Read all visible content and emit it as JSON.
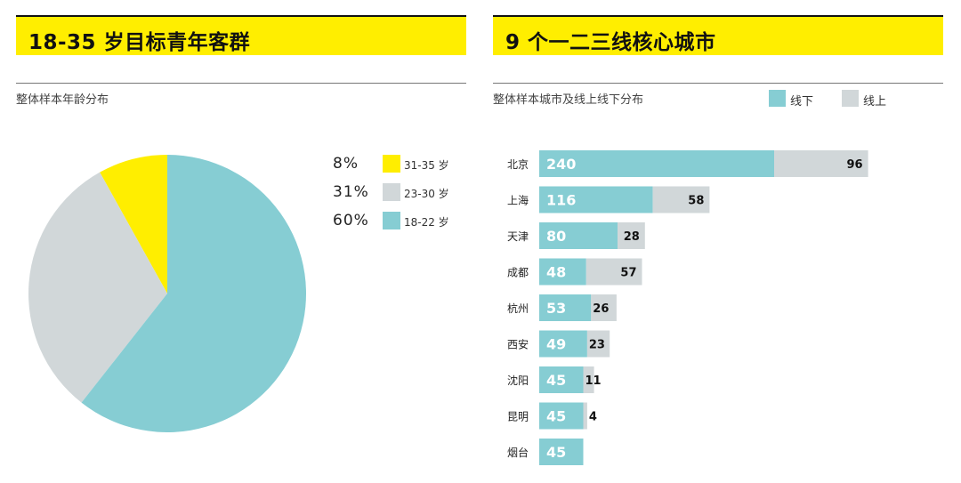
{
  "left": {
    "title": "18-35 岁目标青年客群",
    "subtitle": "整体样本年龄分布"
  },
  "right": {
    "title": "9 个一二三线核心城市",
    "subtitle": "整体样本城市及线上线下分布"
  },
  "colors": {
    "banner": "#ffee00",
    "teal": "#86cdd3",
    "gray": "#d1d7d9",
    "yellow": "#ffee00"
  },
  "chart_data": [
    {
      "type": "pie",
      "title": "整体样本年龄分布",
      "slices": [
        {
          "label": "31-35 岁",
          "pct_label": "8%",
          "value": 8,
          "color": "#ffee00"
        },
        {
          "label": "23-30 岁",
          "pct_label": "31%",
          "value": 31,
          "color": "#d1d7d9"
        },
        {
          "label": "18-22 岁",
          "pct_label": "60%",
          "value": 60,
          "color": "#86cdd3"
        }
      ],
      "legend": "right"
    },
    {
      "type": "bar",
      "orientation": "horizontal",
      "stacked": true,
      "title": "整体样本城市及线上线下分布",
      "categories": [
        "北京",
        "上海",
        "天津",
        "成都",
        "杭州",
        "西安",
        "沈阳",
        "昆明",
        "烟台"
      ],
      "series": [
        {
          "name": "线下",
          "values": [
            240,
            116,
            80,
            48,
            53,
            49,
            45,
            45,
            45
          ],
          "color": "#86cdd3"
        },
        {
          "name": "线上",
          "values": [
            96,
            58,
            28,
            57,
            26,
            23,
            11,
            4,
            0
          ],
          "color": "#d1d7d9"
        }
      ],
      "legend": "top-right",
      "grid": false
    }
  ]
}
